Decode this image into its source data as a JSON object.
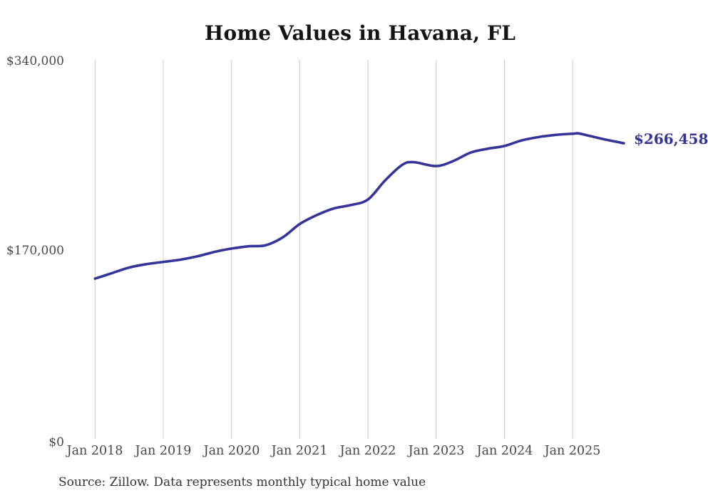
{
  "title": "Home Values in Havana, FL",
  "source_note": "Source: Zillow. Data represents monthly typical home value",
  "end_label": "$266,458",
  "colors": {
    "line": "#34349B",
    "end_label": "#333399",
    "grid": "#cbcbcb",
    "title_text": "#141414",
    "axis_text": "#474747",
    "background": "#ffffff"
  },
  "chart_data": {
    "type": "line",
    "title": "Home Values in Havana, FL",
    "xlabel": "",
    "ylabel": "",
    "ylim": [
      0,
      340000
    ],
    "grid": "vertical-only",
    "legend": "none",
    "y_axis": {
      "ticks": [
        {
          "label": "$0",
          "value": 0
        },
        {
          "label": "$170,000",
          "value": 170000
        },
        {
          "label": "$340,000",
          "value": 340000
        }
      ]
    },
    "x_axis": {
      "ticks": [
        {
          "label": "Jan 2018",
          "month": "2018-01"
        },
        {
          "label": "Jan 2019",
          "month": "2019-01"
        },
        {
          "label": "Jan 2020",
          "month": "2020-01"
        },
        {
          "label": "Jan 2021",
          "month": "2021-01"
        },
        {
          "label": "Jan 2022",
          "month": "2022-01"
        },
        {
          "label": "Jan 2023",
          "month": "2023-01"
        },
        {
          "label": "Jan 2024",
          "month": "2024-01"
        },
        {
          "label": "Jan 2025",
          "month": "2025-01"
        }
      ]
    },
    "series": [
      {
        "name": "Typical home value",
        "points": [
          [
            "2018-01",
            145000
          ],
          [
            "2018-04",
            150000
          ],
          [
            "2018-07",
            155000
          ],
          [
            "2018-10",
            158000
          ],
          [
            "2019-01",
            160000
          ],
          [
            "2019-04",
            162000
          ],
          [
            "2019-07",
            165000
          ],
          [
            "2019-10",
            169000
          ],
          [
            "2020-01",
            172000
          ],
          [
            "2020-04",
            174000
          ],
          [
            "2020-07",
            175000
          ],
          [
            "2020-10",
            182000
          ],
          [
            "2021-01",
            194000
          ],
          [
            "2021-04",
            202000
          ],
          [
            "2021-07",
            208000
          ],
          [
            "2021-10",
            211000
          ],
          [
            "2022-01",
            216000
          ],
          [
            "2022-04",
            233000
          ],
          [
            "2022-07",
            247000
          ],
          [
            "2022-09",
            249500
          ],
          [
            "2023-01",
            246000
          ],
          [
            "2023-04",
            250500
          ],
          [
            "2023-07",
            258000
          ],
          [
            "2023-10",
            261500
          ],
          [
            "2024-01",
            264000
          ],
          [
            "2024-04",
            269000
          ],
          [
            "2024-07",
            272000
          ],
          [
            "2024-10",
            274000
          ],
          [
            "2025-01",
            275000
          ],
          [
            "2025-02",
            275300
          ],
          [
            "2025-04",
            273000
          ],
          [
            "2025-07",
            269500
          ],
          [
            "2025-10",
            266458
          ]
        ]
      }
    ],
    "annotation": {
      "text": "$266,458",
      "position": "end-of-line"
    }
  }
}
